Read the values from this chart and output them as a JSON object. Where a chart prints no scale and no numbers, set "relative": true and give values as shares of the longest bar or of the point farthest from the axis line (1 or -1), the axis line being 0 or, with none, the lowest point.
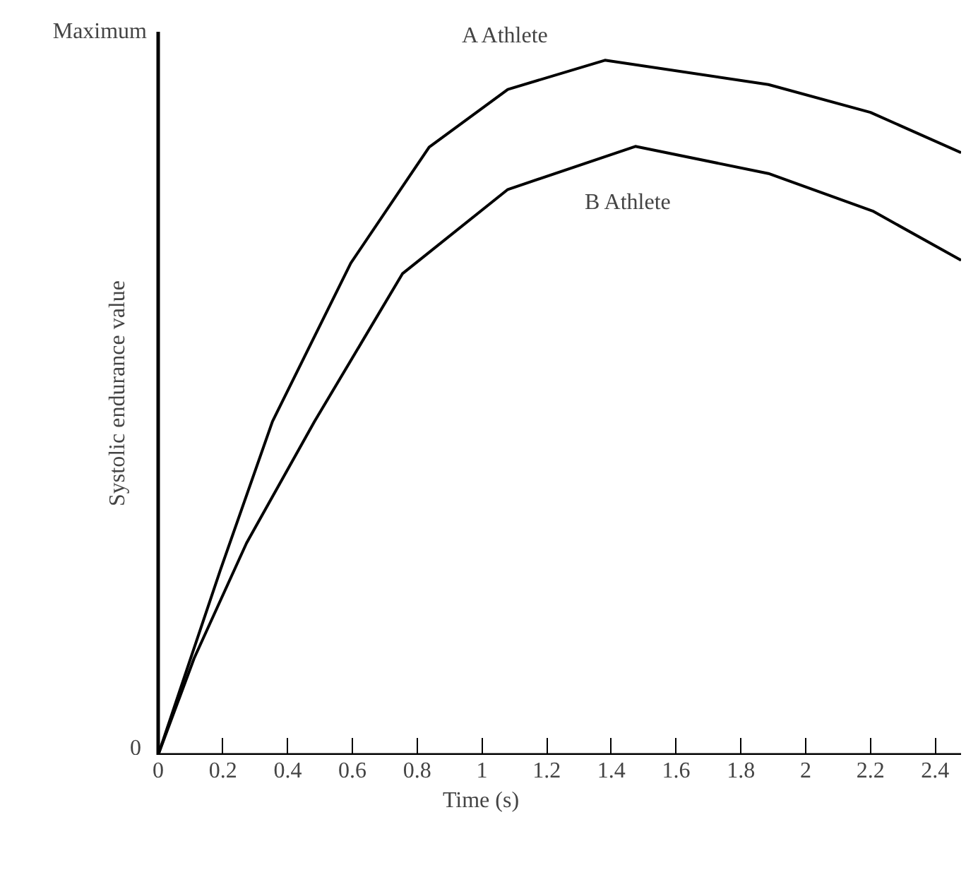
{
  "chart_data": {
    "type": "line",
    "xlabel": "Time (s)",
    "ylabel": "Systolic endurance value",
    "relative": true,
    "xlim": [
      0,
      2.48
    ],
    "xticks": [
      0,
      0.2,
      0.4,
      0.6,
      0.8,
      1,
      1.2,
      1.4,
      1.6,
      1.8,
      2,
      2.2,
      2.4
    ],
    "line_style": "solid",
    "series": [
      {
        "name": "A Athlete",
        "color": "#000000",
        "x": [
          0,
          0.192,
          0.353,
          0.595,
          0.837,
          1.08,
          1.38,
          1.885,
          2.2,
          2.48
        ],
        "values": [
          0,
          0.266,
          0.48,
          0.708,
          0.875,
          0.958,
          1,
          0.965,
          0.925,
          0.867
        ]
      },
      {
        "name": "B Athlete",
        "color": "#000000",
        "x": [
          0,
          0.111,
          0.273,
          0.483,
          0.755,
          1.08,
          1.474,
          1.885,
          2.207,
          2.48
        ],
        "values": [
          0,
          0.139,
          0.305,
          0.48,
          0.693,
          0.814,
          0.876,
          0.837,
          0.783,
          0.712
        ]
      }
    ],
    "annotations": [
      "0",
      "Maximum"
    ]
  }
}
